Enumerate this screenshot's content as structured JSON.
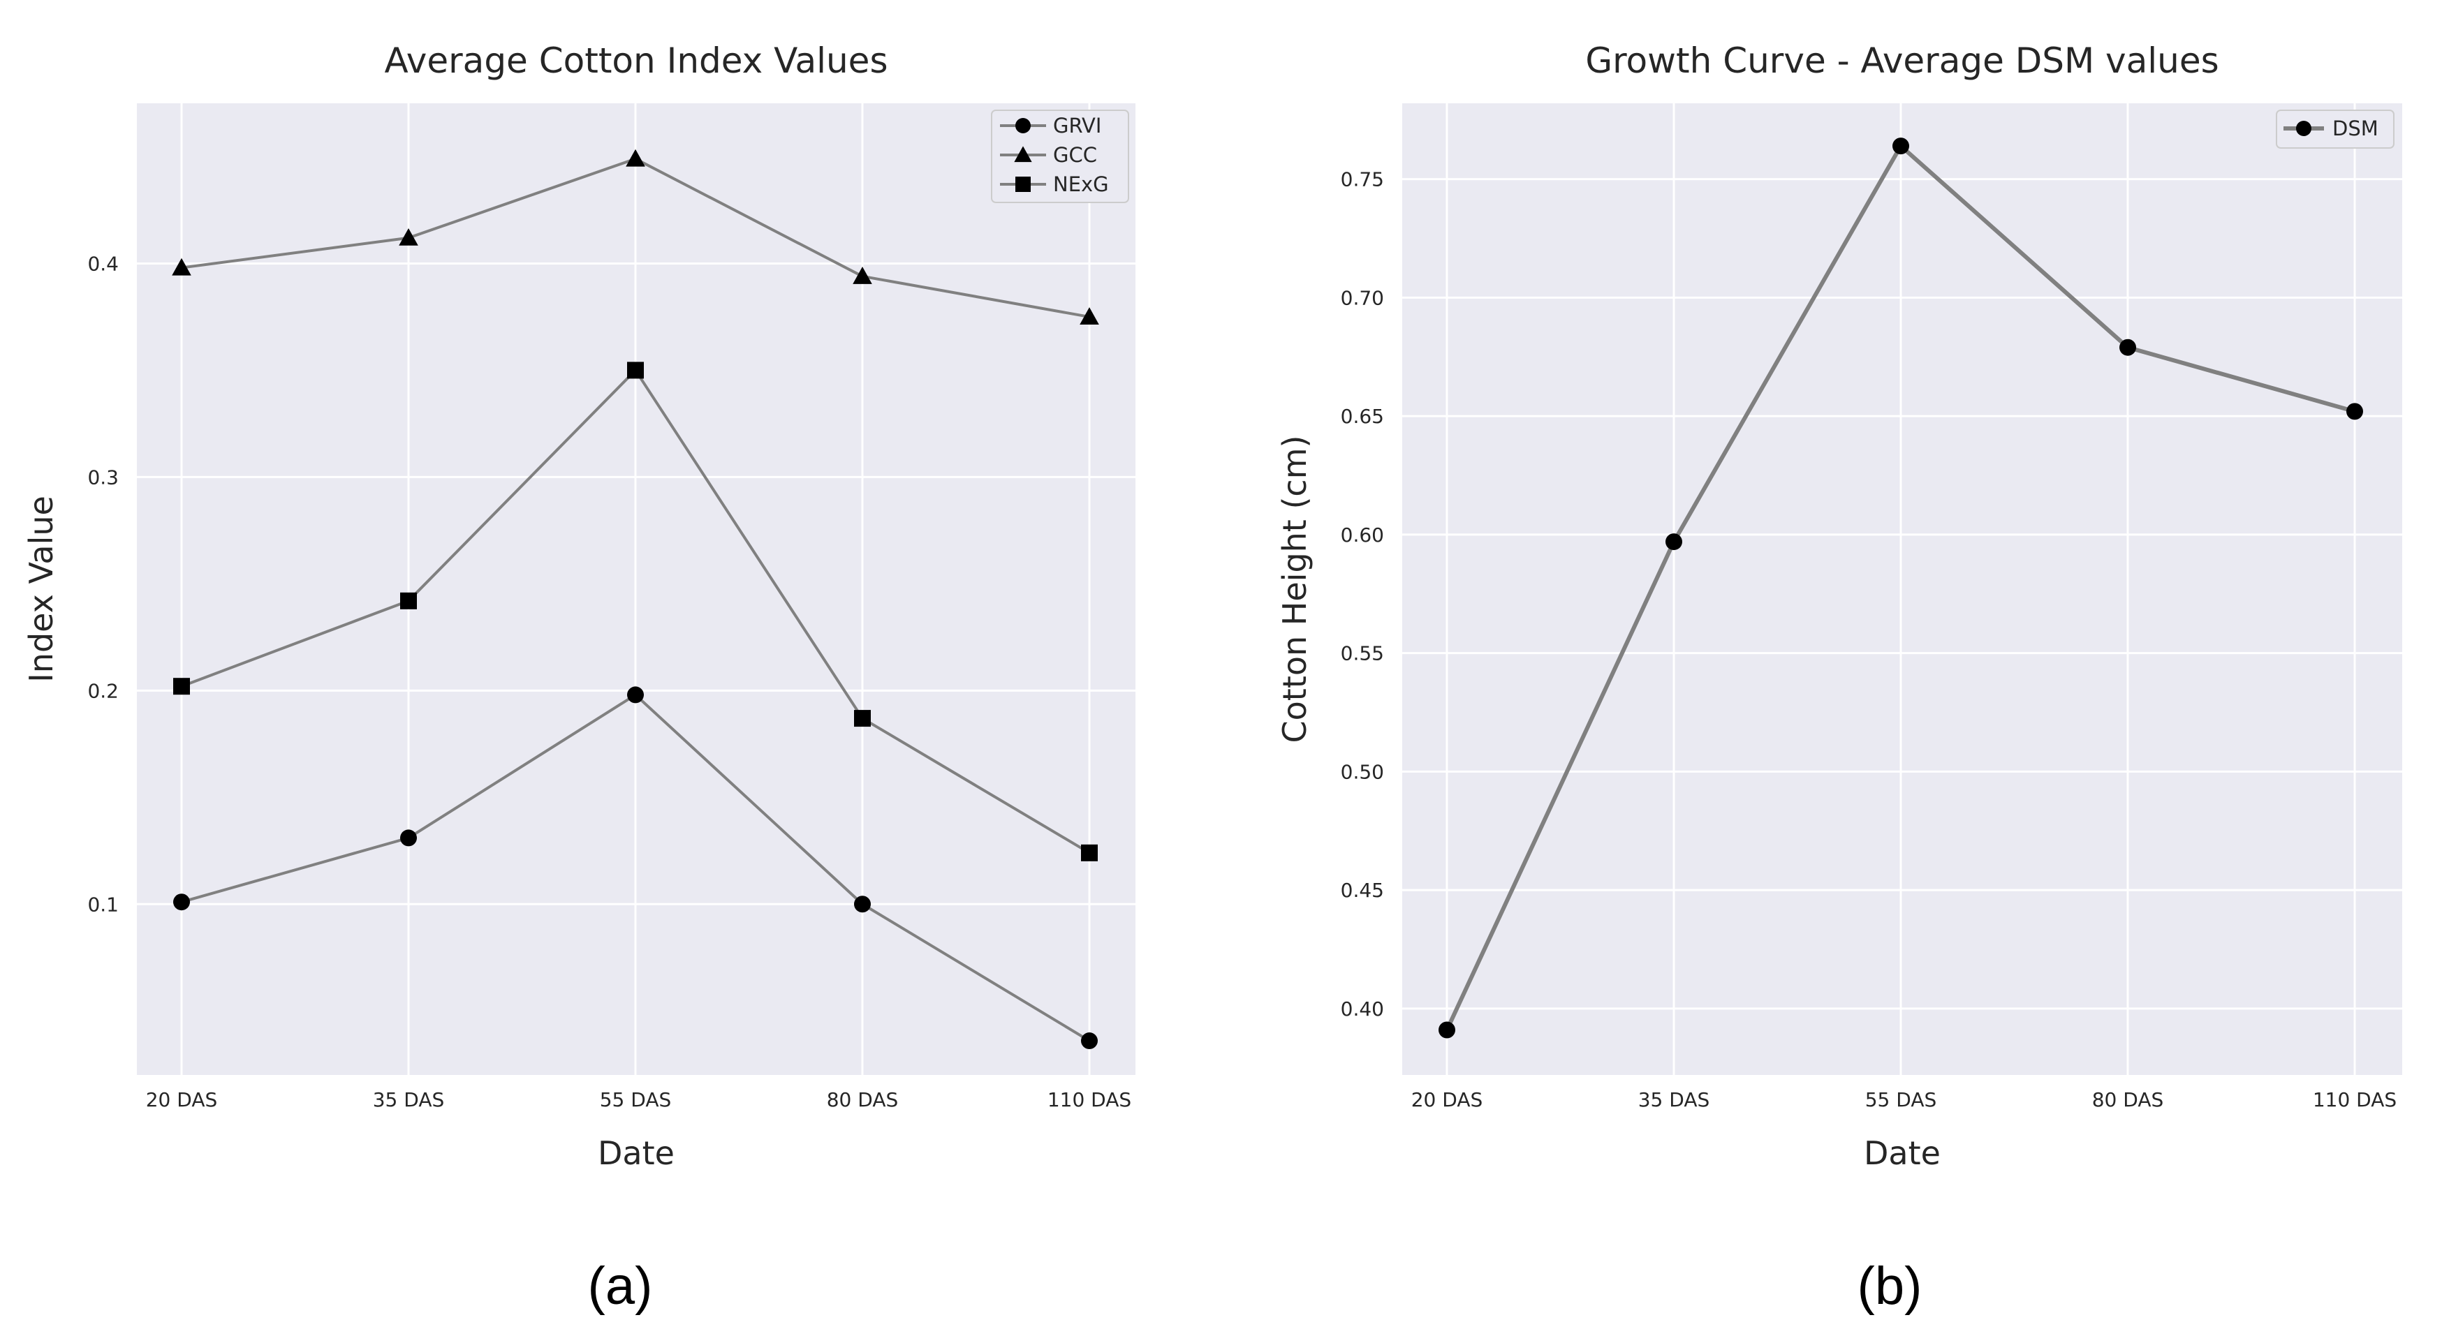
{
  "chart_data": [
    {
      "type": "line",
      "title": "Average Cotton Index Values",
      "xlabel": "Date",
      "ylabel": "Index Value",
      "categories": [
        "20 DAS",
        "35 DAS",
        "55 DAS",
        "80 DAS",
        "110 DAS"
      ],
      "ylim": [
        0.02,
        0.475
      ],
      "yticks": [
        "0.1",
        "0.2",
        "0.3",
        "0.4"
      ],
      "grid": true,
      "legend_position": "top-right",
      "series": [
        {
          "name": "GRVI",
          "marker": "circle",
          "values": [
            0.101,
            0.131,
            0.198,
            0.1,
            0.036
          ]
        },
        {
          "name": "GCC",
          "marker": "triangle",
          "values": [
            0.398,
            0.412,
            0.449,
            0.394,
            0.375
          ]
        },
        {
          "name": "NExG",
          "marker": "square",
          "values": [
            0.202,
            0.242,
            0.35,
            0.187,
            0.124
          ]
        }
      ],
      "panel_label": "(a)"
    },
    {
      "type": "line",
      "title": "Growth Curve - Average DSM values",
      "xlabel": "Date",
      "ylabel": "Cotton Height (cm)",
      "categories": [
        "20 DAS",
        "35 DAS",
        "55 DAS",
        "80 DAS",
        "110 DAS"
      ],
      "ylim": [
        0.372,
        0.782
      ],
      "yticks": [
        "0.40",
        "0.45",
        "0.50",
        "0.55",
        "0.60",
        "0.65",
        "0.70",
        "0.75"
      ],
      "grid": true,
      "legend_position": "top-right",
      "series": [
        {
          "name": "DSM",
          "marker": "circle",
          "values": [
            0.391,
            0.597,
            0.764,
            0.679,
            0.652
          ]
        }
      ],
      "panel_label": "(b)"
    }
  ],
  "colors": {
    "plot_background": "#eaeaf2",
    "grid": "#ffffff",
    "line": "#808080",
    "marker": "#000000",
    "text": "#262626"
  }
}
